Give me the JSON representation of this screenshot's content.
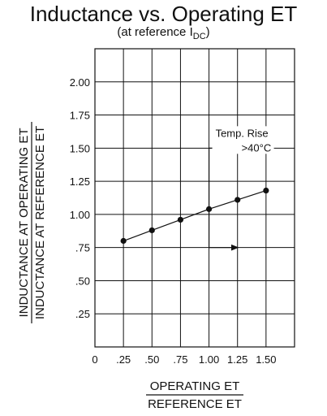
{
  "title": "Inductance vs. Operating ET",
  "subtitle": {
    "prefix": "(at reference I",
    "subscript": "DC",
    "suffix": ")"
  },
  "chart_data": {
    "type": "line",
    "x": [
      0.25,
      0.5,
      0.75,
      1.0,
      1.25,
      1.5
    ],
    "series": [
      {
        "values": [
          0.8,
          0.88,
          0.96,
          1.04,
          1.11,
          1.18
        ]
      }
    ],
    "xlim": [
      0,
      1.75
    ],
    "ylim": [
      0,
      2.25
    ],
    "x_ticks": [
      {
        "value": 0,
        "label": "0"
      },
      {
        "value": 0.25,
        "label": ".25"
      },
      {
        "value": 0.5,
        "label": ".50"
      },
      {
        "value": 0.75,
        "label": ".75"
      },
      {
        "value": 1.0,
        "label": "1.00"
      },
      {
        "value": 1.25,
        "label": "1.25"
      },
      {
        "value": 1.5,
        "label": "1.50"
      }
    ],
    "y_ticks": [
      {
        "value": 0.25,
        "label": ".25"
      },
      {
        "value": 0.5,
        "label": ".50"
      },
      {
        "value": 0.75,
        "label": ".75"
      },
      {
        "value": 1.0,
        "label": "1.00"
      },
      {
        "value": 1.25,
        "label": "1.25"
      },
      {
        "value": 1.5,
        "label": "1.50"
      },
      {
        "value": 1.75,
        "label": "1.75"
      },
      {
        "value": 2.0,
        "label": "2.00"
      }
    ],
    "xlabel_numerator": "OPERATING ET",
    "xlabel_denominator": "REFERENCE ET",
    "ylabel_numerator": "INDUCTANCE AT OPERATING ET",
    "ylabel_denominator": "INDUCTANCE AT REFERENCE ET",
    "annotation": {
      "line1": "Temp. Rise",
      "line2": ">40°C",
      "x": 1.0,
      "y_top": 1.5,
      "y_bottom": 0.75
    },
    "grid": true
  }
}
